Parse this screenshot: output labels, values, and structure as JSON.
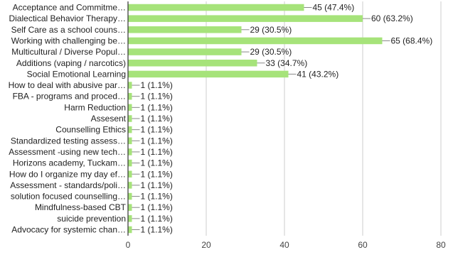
{
  "chart_data": {
    "type": "bar",
    "orientation": "horizontal",
    "categories": [
      "Acceptance and Commitme…",
      "Dialectical Behavior Therapy…",
      "Self Care as a school couns…",
      "Working with challenging be…",
      "Multicultural / Diverse Popul…",
      "Additions (vaping / narcotics)",
      "Social Emotional Learning",
      "How to deal with abusive par…",
      "FBA - programs and proced…",
      "Harm Reduction",
      "Assesent",
      "Counselling Ethics",
      "Standardized testing assess…",
      "Assessment -using new tech…",
      "Horizons academy, Tuckam…",
      "How do I organize my day ef…",
      "Assessment - standards/poli…",
      "solution focused counselling…",
      "Mindfulness-based CBT",
      "suicide prevention",
      "Advocacy for systemic chan…"
    ],
    "values": [
      45,
      60,
      29,
      65,
      29,
      33,
      41,
      1,
      1,
      1,
      1,
      1,
      1,
      1,
      1,
      1,
      1,
      1,
      1,
      1,
      1
    ],
    "value_labels": [
      "45 (47.4%)",
      "60 (63.2%)",
      "29 (30.5%)",
      "65 (68.4%)",
      "29 (30.5%)",
      "33 (34.7%)",
      "41 (43.2%)",
      "1 (1.1%)",
      "1 (1.1%)",
      "1 (1.1%)",
      "1 (1.1%)",
      "1 (1.1%)",
      "1 (1.1%)",
      "1 (1.1%)",
      "1 (1.1%)",
      "1 (1.1%)",
      "1 (1.1%)",
      "1 (1.1%)",
      "1 (1.1%)",
      "1 (1.1%)",
      "1 (1.1%)"
    ],
    "xlim": [
      0,
      80
    ],
    "xticks": [
      0,
      20,
      40,
      60,
      80
    ],
    "grid": true,
    "bar_color": "#a6e37a",
    "axis_color": "#333333",
    "grid_color": "#cccccc"
  }
}
